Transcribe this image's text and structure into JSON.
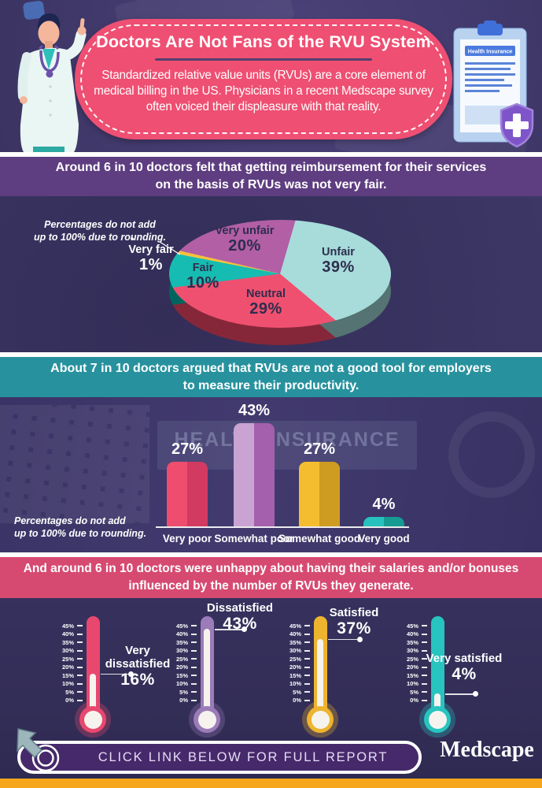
{
  "header": {
    "title": "Doctors Are Not Fans of the RVU System",
    "subtitle_lines": [
      "Standardized relative value units (RVUs) are a core element of",
      "medical billing in the US. Physicians in a recent Medscape survey",
      "often voiced their displeasure with that reality."
    ],
    "clipboard_label": "Health Insurance"
  },
  "rounding_note": {
    "line1": "Percentages do not add",
    "line2": "up to 100% due to rounding."
  },
  "sections": [
    {
      "heading_lines": [
        "Around 6 in 10 doctors felt that getting reimbursement for their services",
        "on the basis of RVUs was not very fair."
      ],
      "banner_color": "#5e3d80"
    },
    {
      "heading_lines": [
        "About 7 in 10 doctors argued that RVUs are not a good tool for employers",
        "to measure their productivity."
      ],
      "banner_color": "#27929e"
    },
    {
      "heading_lines": [
        "And around 6 in 10 doctors were unhappy about having their salaries and/or bonuses",
        "influenced by the number of RVUs they generate."
      ],
      "banner_color": "#d64a71"
    }
  ],
  "background": {
    "sign_text": "HEALTH INSURANCE"
  },
  "chart_data": [
    {
      "type": "pie",
      "title": "Around 6 in 10 doctors felt that getting reimbursement for their services on the basis of RVUs was not very fair.",
      "start_angle_deg": 8,
      "slices": [
        {
          "label": "Unfair",
          "value": 39,
          "value_label": "39%",
          "color": "#a7dcda"
        },
        {
          "label": "Neutral",
          "value": 29,
          "value_label": "29%",
          "color": "#f0506f"
        },
        {
          "label": "Fair",
          "value": 10,
          "value_label": "10%",
          "color": "#16bcb1"
        },
        {
          "label": "Very fair",
          "value": 1,
          "value_label": "1%",
          "color": "#f3c23e"
        },
        {
          "label": "Very unfair",
          "value": 20,
          "value_label": "20%",
          "color": "#b25fa6"
        }
      ],
      "note": "Percentages do not add up to 100% due to rounding."
    },
    {
      "type": "bar",
      "title": "About 7 in 10 doctors argued that RVUs are not a good tool for employers to measure their productivity.",
      "categories": [
        "Very poor",
        "Somewhat poor",
        "Somewhat good",
        "Very good"
      ],
      "values": [
        27,
        43,
        27,
        4
      ],
      "value_labels": [
        "27%",
        "43%",
        "27%",
        "4%"
      ],
      "colors_light": [
        "#ee4d6e",
        "#c9a3d2",
        "#f3bd2f",
        "#27c2bd"
      ],
      "colors_dark": [
        "#d23a61",
        "#a560ad",
        "#cf9c22",
        "#159b92"
      ],
      "ylim": [
        0,
        45
      ],
      "note": "Percentages do not add up to 100% due to rounding."
    },
    {
      "type": "thermometer",
      "title": "And around 6 in 10 doctors were unhappy about having their salaries and/or bonuses influenced by the number of RVUs they generate.",
      "scale_ticks": [
        "45%",
        "40%",
        "35%",
        "30%",
        "25%",
        "20%",
        "15%",
        "10%",
        "5%",
        "0%"
      ],
      "ylim": [
        0,
        45
      ],
      "items": [
        {
          "label": "Very dissatisfied",
          "value": 16,
          "value_label": "16%",
          "color": "#e8486e"
        },
        {
          "label": "Dissatisfied",
          "value": 43,
          "value_label": "43%",
          "color": "#9b7cb8"
        },
        {
          "label": "Satisfied",
          "value": 37,
          "value_label": "37%",
          "color": "#eeb42e"
        },
        {
          "label": "Very satisfied",
          "value": 4,
          "value_label": "4%",
          "color": "#28c4bf"
        }
      ]
    }
  ],
  "footer": {
    "cta": "CLICK LINK BELOW FOR FULL REPORT",
    "brand": "Medscape"
  },
  "colors": {
    "page_background": "#3a3466",
    "header_bubble": "#ee4f72",
    "banner1": "#5e3d80",
    "banner2": "#27929e",
    "banner3": "#d64a71",
    "divider_strip": "#ffffff",
    "bottom_bar": "#f6a61d",
    "cta_pill": "#46296a"
  }
}
